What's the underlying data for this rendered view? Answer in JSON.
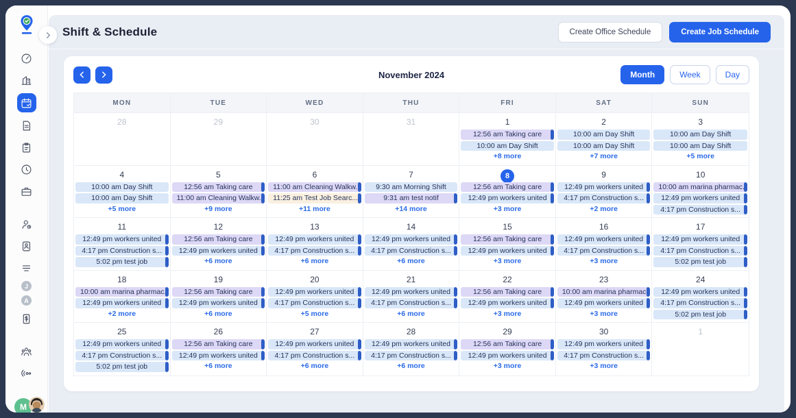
{
  "header": {
    "title": "Shift & Schedule",
    "create_office_button": "Create Office Schedule",
    "create_job_button": "Create Job Schedule"
  },
  "toolbar": {
    "month_label": "November 2024",
    "views": [
      {
        "label": "Month",
        "active": true
      },
      {
        "label": "Week",
        "active": false
      },
      {
        "label": "Day",
        "active": false
      }
    ]
  },
  "calendar": {
    "day_headers": [
      "MON",
      "TUE",
      "WED",
      "THU",
      "FRI",
      "SAT",
      "SUN"
    ],
    "weeks": [
      [
        {
          "d": "28",
          "muted": true,
          "events": []
        },
        {
          "d": "29",
          "muted": true,
          "events": []
        },
        {
          "d": "30",
          "muted": true,
          "events": []
        },
        {
          "d": "31",
          "muted": true,
          "events": []
        },
        {
          "d": "1",
          "events": [
            {
              "t": "12:56 am Taking care",
              "c": "purple",
              "bar": true
            },
            {
              "t": "10:00 am Day Shift",
              "c": "blue",
              "bar": false
            }
          ],
          "more": "+8 more"
        },
        {
          "d": "2",
          "events": [
            {
              "t": "10:00 am Day Shift",
              "c": "blue",
              "bar": false
            },
            {
              "t": "10:00 am Day Shift",
              "c": "blue",
              "bar": false
            }
          ],
          "more": "+7 more"
        },
        {
          "d": "3",
          "events": [
            {
              "t": "10:00 am Day Shift",
              "c": "blue",
              "bar": false
            },
            {
              "t": "10:00 am Day Shift",
              "c": "blue",
              "bar": false
            }
          ],
          "more": "+5 more"
        }
      ],
      [
        {
          "d": "4",
          "events": [
            {
              "t": "10:00 am Day Shift",
              "c": "blue",
              "bar": false
            },
            {
              "t": "10:00 am Day Shift",
              "c": "blue",
              "bar": false
            }
          ],
          "more": "+5 more"
        },
        {
          "d": "5",
          "events": [
            {
              "t": "12:56 am Taking care",
              "c": "purple",
              "bar": true
            },
            {
              "t": "11:00 am Cleaning Walkw...",
              "c": "purple",
              "bar": true
            }
          ],
          "more": "+9 more"
        },
        {
          "d": "6",
          "events": [
            {
              "t": "11:00 am Cleaning Walkw...",
              "c": "purple",
              "bar": true
            },
            {
              "t": "11:25 am Test Job Searc...",
              "c": "cream",
              "bar": true
            }
          ],
          "more": "+11 more"
        },
        {
          "d": "7",
          "events": [
            {
              "t": "9:30 am Morning Shift",
              "c": "blue",
              "bar": false
            },
            {
              "t": "9:31 am test notif",
              "c": "purple",
              "bar": true
            }
          ],
          "more": "+14 more"
        },
        {
          "d": "8",
          "today": true,
          "events": [
            {
              "t": "12:56 am Taking care",
              "c": "purple",
              "bar": true
            },
            {
              "t": "12:49 pm workers united",
              "c": "blue",
              "bar": true
            }
          ],
          "more": "+3 more"
        },
        {
          "d": "9",
          "events": [
            {
              "t": "12:49 pm workers united",
              "c": "blue",
              "bar": true
            },
            {
              "t": "4:17 pm Construction s...",
              "c": "blue",
              "bar": true
            }
          ],
          "more": "+2 more"
        },
        {
          "d": "10",
          "events": [
            {
              "t": "10:00 am marina pharmac...",
              "c": "purple",
              "bar": true
            },
            {
              "t": "12:49 pm workers united",
              "c": "blue",
              "bar": true
            },
            {
              "t": "4:17 pm Construction s...",
              "c": "blue",
              "bar": true
            }
          ]
        }
      ],
      [
        {
          "d": "11",
          "events": [
            {
              "t": "12:49 pm workers united",
              "c": "blue",
              "bar": true
            },
            {
              "t": "4:17 pm Construction s...",
              "c": "blue",
              "bar": true
            },
            {
              "t": "5:02 pm test job",
              "c": "blue",
              "bar": true
            }
          ]
        },
        {
          "d": "12",
          "events": [
            {
              "t": "12:56 am Taking care",
              "c": "purple",
              "bar": true
            },
            {
              "t": "12:49 pm workers united",
              "c": "blue",
              "bar": true
            }
          ],
          "more": "+6 more"
        },
        {
          "d": "13",
          "events": [
            {
              "t": "12:49 pm workers united",
              "c": "blue",
              "bar": true
            },
            {
              "t": "4:17 pm Construction s...",
              "c": "blue",
              "bar": true
            }
          ],
          "more": "+6 more"
        },
        {
          "d": "14",
          "events": [
            {
              "t": "12:49 pm workers united",
              "c": "blue",
              "bar": true
            },
            {
              "t": "4:17 pm Construction s...",
              "c": "blue",
              "bar": true
            }
          ],
          "more": "+6 more"
        },
        {
          "d": "15",
          "events": [
            {
              "t": "12:56 am Taking care",
              "c": "purple",
              "bar": true
            },
            {
              "t": "12:49 pm workers united",
              "c": "blue",
              "bar": true
            }
          ],
          "more": "+3 more"
        },
        {
          "d": "16",
          "events": [
            {
              "t": "12:49 pm workers united",
              "c": "blue",
              "bar": true
            },
            {
              "t": "4:17 pm Construction s...",
              "c": "blue",
              "bar": true
            }
          ],
          "more": "+3 more"
        },
        {
          "d": "17",
          "events": [
            {
              "t": "12:49 pm workers united",
              "c": "blue",
              "bar": true
            },
            {
              "t": "4:17 pm Construction s...",
              "c": "blue",
              "bar": true
            },
            {
              "t": "5:02 pm test job",
              "c": "blue",
              "bar": true
            }
          ]
        }
      ],
      [
        {
          "d": "18",
          "events": [
            {
              "t": "10:00 am marina pharmac...",
              "c": "purple",
              "bar": true
            },
            {
              "t": "12:49 pm workers united",
              "c": "blue",
              "bar": true
            }
          ],
          "more": "+2 more"
        },
        {
          "d": "19",
          "events": [
            {
              "t": "12:56 am Taking care",
              "c": "purple",
              "bar": true
            },
            {
              "t": "12:49 pm workers united",
              "c": "blue",
              "bar": true
            }
          ],
          "more": "+6 more"
        },
        {
          "d": "20",
          "events": [
            {
              "t": "12:49 pm workers united",
              "c": "blue",
              "bar": true
            },
            {
              "t": "4:17 pm Construction s...",
              "c": "blue",
              "bar": true
            }
          ],
          "more": "+5 more"
        },
        {
          "d": "21",
          "events": [
            {
              "t": "12:49 pm workers united",
              "c": "blue",
              "bar": true
            },
            {
              "t": "4:17 pm Construction s...",
              "c": "blue",
              "bar": true
            }
          ],
          "more": "+6 more"
        },
        {
          "d": "22",
          "events": [
            {
              "t": "12:56 am Taking care",
              "c": "purple",
              "bar": true
            },
            {
              "t": "12:49 pm workers united",
              "c": "blue",
              "bar": true
            }
          ],
          "more": "+3 more"
        },
        {
          "d": "23",
          "events": [
            {
              "t": "10:00 am marina pharmac...",
              "c": "purple",
              "bar": true
            },
            {
              "t": "12:49 pm workers united",
              "c": "blue",
              "bar": true
            }
          ],
          "more": "+3 more"
        },
        {
          "d": "24",
          "events": [
            {
              "t": "12:49 pm workers united",
              "c": "blue",
              "bar": true
            },
            {
              "t": "4:17 pm Construction s...",
              "c": "blue",
              "bar": true
            },
            {
              "t": "5:02 pm test job",
              "c": "blue",
              "bar": true
            }
          ]
        }
      ],
      [
        {
          "d": "25",
          "events": [
            {
              "t": "12:49 pm workers united",
              "c": "blue",
              "bar": true
            },
            {
              "t": "4:17 pm Construction s...",
              "c": "blue",
              "bar": true
            },
            {
              "t": "5:02 pm test job",
              "c": "blue",
              "bar": true
            }
          ]
        },
        {
          "d": "26",
          "events": [
            {
              "t": "12:56 am Taking care",
              "c": "purple",
              "bar": true
            },
            {
              "t": "12:49 pm workers united",
              "c": "blue",
              "bar": true
            }
          ],
          "more": "+6 more"
        },
        {
          "d": "27",
          "events": [
            {
              "t": "12:49 pm workers united",
              "c": "blue",
              "bar": true
            },
            {
              "t": "4:17 pm Construction s...",
              "c": "blue",
              "bar": true
            }
          ],
          "more": "+6 more"
        },
        {
          "d": "28",
          "events": [
            {
              "t": "12:49 pm workers united",
              "c": "blue",
              "bar": true
            },
            {
              "t": "4:17 pm Construction s...",
              "c": "blue",
              "bar": true
            }
          ],
          "more": "+6 more"
        },
        {
          "d": "29",
          "events": [
            {
              "t": "12:56 am Taking care",
              "c": "purple",
              "bar": true
            },
            {
              "t": "12:49 pm workers united",
              "c": "blue",
              "bar": true
            }
          ],
          "more": "+3 more"
        },
        {
          "d": "30",
          "events": [
            {
              "t": "12:49 pm workers united",
              "c": "blue",
              "bar": true
            },
            {
              "t": "4:17 pm Construction s...",
              "c": "blue",
              "bar": true
            }
          ],
          "more": "+3 more"
        },
        {
          "d": "1",
          "muted": true,
          "events": []
        }
      ]
    ]
  },
  "sidebar": {
    "icon_groups": [
      [
        "dashboard",
        "company",
        "schedule",
        "documents",
        "tasks",
        "time-tracking",
        "jobs"
      ],
      [
        "employees",
        "id-card",
        "reports",
        "badge-J",
        "badge-A",
        "payroll"
      ],
      [
        "team",
        "broadcast"
      ],
      [
        "org-chart",
        "settings"
      ]
    ],
    "active_icon": "schedule",
    "badge_J": "J",
    "badge_A": "A",
    "avatar_initial": "M"
  },
  "colors": {
    "accent": "#2563eb",
    "outer_background": "#2c3750",
    "app_background": "#e9edf4",
    "event_blue": "#d9e7f8",
    "event_purple": "#ddd8f6",
    "event_cream": "#faf0e0",
    "event_bar": "#2e5ec6",
    "logo_green": "#3aa557",
    "avatar_green": "#5ec08f"
  }
}
